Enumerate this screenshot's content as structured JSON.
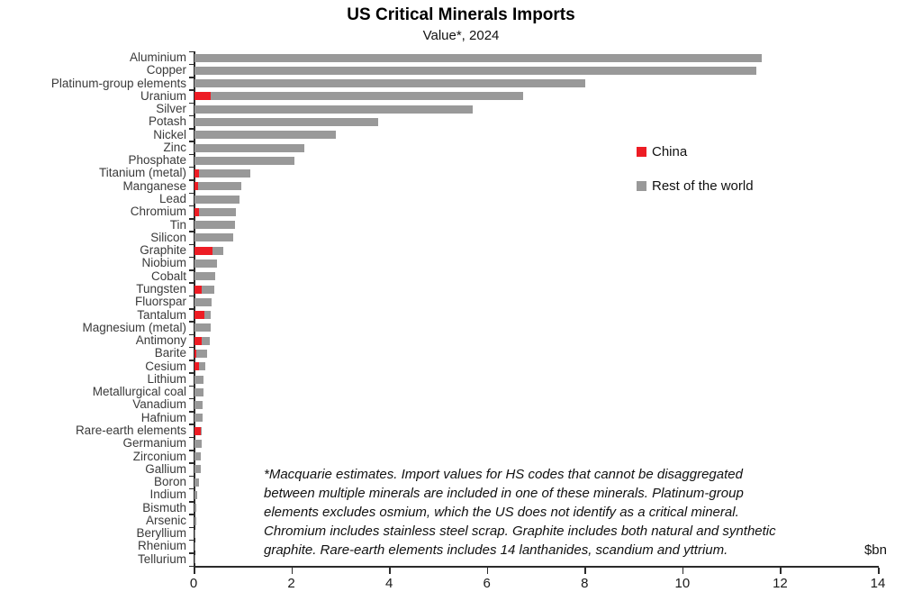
{
  "title": "US Critical Minerals Imports",
  "subtitle": "Value*, 2024",
  "legend": [
    {
      "label": "China",
      "color": "#ed1c24"
    },
    {
      "label": "Rest of the world",
      "color": "#999999"
    }
  ],
  "unit_label": "$bn",
  "footnote_lines": [
    "*Macquarie estimates. Import values for HS codes that cannot be disaggregated",
    "between multiple minerals are included in one of these minerals. Platinum-group",
    "elements excludes osmium, which the US does not identify as a critical mineral.",
    "Chromium includes stainless steel scrap. Graphite includes both natural and synthetic",
    "graphite. Rare-earth elements includes 14 lanthanides, scandium and yttrium."
  ],
  "chart_data": {
    "type": "bar",
    "orientation": "horizontal",
    "stacked": true,
    "title": "US Critical Minerals Imports",
    "subtitle": "Value*, 2024",
    "xlabel": "$bn",
    "xlim": [
      0,
      14
    ],
    "xticks": [
      0,
      2,
      4,
      6,
      8,
      10,
      12,
      14
    ],
    "grid": false,
    "legend_position": "center-right",
    "colors": {
      "china": "#ed1c24",
      "rest_of_world": "#999999"
    },
    "categories": [
      "Aluminium",
      "Copper",
      "Platinum-group elements",
      "Uranium",
      "Silver",
      "Potash",
      "Nickel",
      "Zinc",
      "Phosphate",
      "Titanium (metal)",
      "Manganese",
      "Lead",
      "Chromium",
      "Tin",
      "Silicon",
      "Graphite",
      "Niobium",
      "Cobalt",
      "Tungsten",
      "Fluorspar",
      "Tantalum",
      "Magnesium (metal)",
      "Antimony",
      "Barite",
      "Cesium",
      "Lithium",
      "Metallurgical coal",
      "Vanadium",
      "Hafnium",
      "Rare-earth elements",
      "Germanium",
      "Zirconium",
      "Gallium",
      "Boron",
      "Indium",
      "Bismuth",
      "Arsenic",
      "Beryllium",
      "Rhenium",
      "Tellurium"
    ],
    "series": [
      {
        "name": "China",
        "values": [
          0,
          0,
          0,
          0.33,
          0,
          0,
          0,
          0,
          0,
          0.1,
          0.08,
          0,
          0.1,
          0,
          0,
          0.37,
          0,
          0,
          0.15,
          0,
          0.2,
          0,
          0.15,
          0.03,
          0.1,
          0,
          0,
          0,
          0,
          0.13,
          0,
          0,
          0,
          0,
          0,
          0,
          0,
          0,
          0,
          0
        ]
      },
      {
        "name": "Rest of the world",
        "values": [
          11.6,
          11.5,
          8.0,
          6.4,
          5.7,
          3.75,
          2.9,
          2.25,
          2.05,
          1.05,
          0.88,
          0.92,
          0.75,
          0.82,
          0.8,
          0.22,
          0.46,
          0.43,
          0.25,
          0.35,
          0.14,
          0.33,
          0.16,
          0.23,
          0.12,
          0.19,
          0.18,
          0.17,
          0.16,
          0.02,
          0.15,
          0.13,
          0.12,
          0.1,
          0.06,
          0.04,
          0.03,
          0.02,
          0.015,
          0.01
        ]
      }
    ]
  }
}
